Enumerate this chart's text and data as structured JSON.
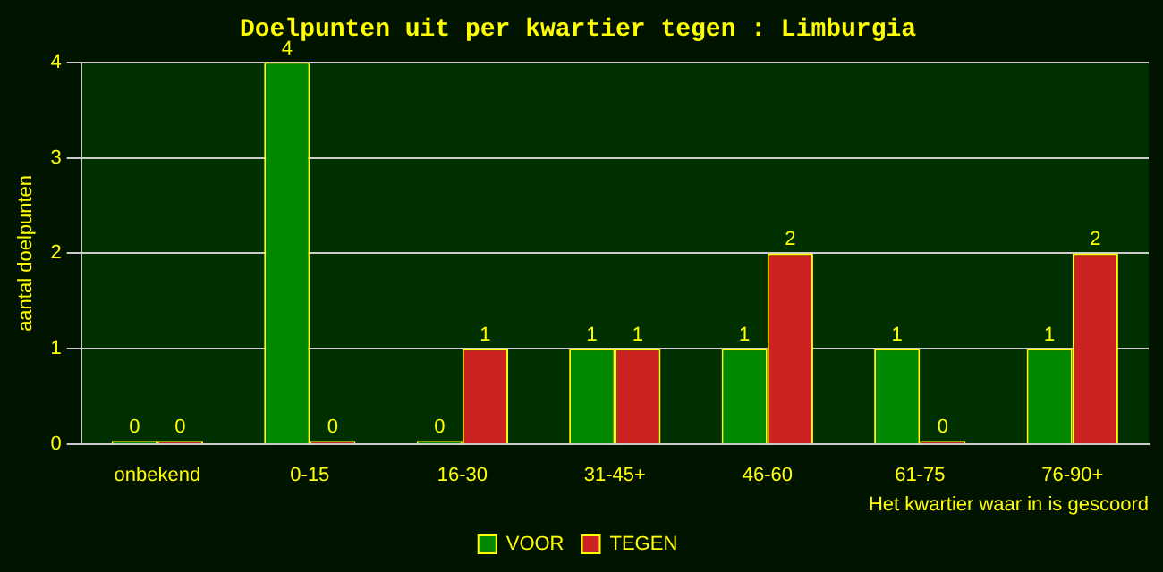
{
  "chart_data": {
    "type": "bar",
    "title": "Doelpunten uit per kwartier tegen : Limburgia",
    "xlabel": "Het kwartier waar in is gescoord",
    "ylabel": "aantal doelpunten",
    "categories": [
      "onbekend",
      "0-15",
      "16-30",
      "31-45+",
      "46-60",
      "61-75",
      "76-90+"
    ],
    "series": [
      {
        "name": "VOOR",
        "color": "#008800",
        "values": [
          0,
          4,
          0,
          1,
          1,
          1,
          1
        ]
      },
      {
        "name": "TEGEN",
        "color": "#cc2222",
        "values": [
          0,
          0,
          1,
          1,
          2,
          0,
          2
        ]
      }
    ],
    "ylim": [
      0,
      4
    ],
    "yticks": [
      0,
      1,
      2,
      3,
      4
    ],
    "grid": "y",
    "legend": "bottom",
    "data_labels": true
  }
}
